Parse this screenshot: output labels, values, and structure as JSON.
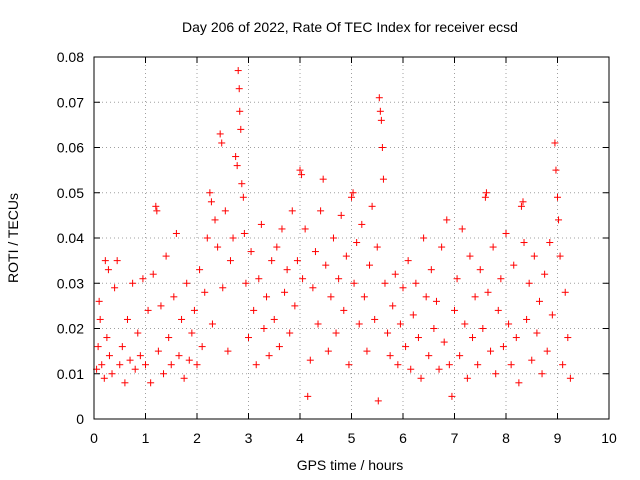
{
  "chart_data": {
    "type": "scatter",
    "title": "Day 206 of 2022, Rate Of TEC Index for receiver ecsd",
    "xlabel": "GPS time / hours",
    "ylabel": "ROTI / TECUs",
    "xlim": [
      0,
      10
    ],
    "ylim": [
      0,
      0.08
    ],
    "xticks": [
      "0",
      "1",
      "2",
      "3",
      "4",
      "5",
      "6",
      "7",
      "8",
      "9",
      "10"
    ],
    "yticks": [
      "0",
      "0.01",
      "0.02",
      "0.03",
      "0.04",
      "0.05",
      "0.06",
      "0.07",
      "0.08"
    ],
    "xtick_values": [
      0,
      1,
      2,
      3,
      4,
      5,
      6,
      7,
      8,
      9,
      10
    ],
    "ytick_values": [
      0,
      0.01,
      0.02,
      0.03,
      0.04,
      0.05,
      0.06,
      0.07,
      0.08
    ],
    "grid": true,
    "marker": "+",
    "color": "#ff0000",
    "series": [
      {
        "name": "ROTI",
        "points": [
          [
            0.05,
            0.011
          ],
          [
            0.08,
            0.016
          ],
          [
            0.1,
            0.026
          ],
          [
            0.12,
            0.022
          ],
          [
            0.15,
            0.012
          ],
          [
            0.2,
            0.009
          ],
          [
            0.22,
            0.035
          ],
          [
            0.25,
            0.018
          ],
          [
            0.28,
            0.033
          ],
          [
            0.3,
            0.014
          ],
          [
            0.35,
            0.01
          ],
          [
            0.4,
            0.029
          ],
          [
            0.45,
            0.035
          ],
          [
            0.5,
            0.012
          ],
          [
            0.55,
            0.016
          ],
          [
            0.6,
            0.008
          ],
          [
            0.65,
            0.022
          ],
          [
            0.7,
            0.013
          ],
          [
            0.75,
            0.03
          ],
          [
            0.8,
            0.011
          ],
          [
            0.85,
            0.019
          ],
          [
            0.9,
            0.014
          ],
          [
            0.95,
            0.031
          ],
          [
            1.0,
            0.012
          ],
          [
            1.05,
            0.024
          ],
          [
            1.1,
            0.008
          ],
          [
            1.15,
            0.032
          ],
          [
            1.2,
            0.047
          ],
          [
            1.22,
            0.046
          ],
          [
            1.25,
            0.015
          ],
          [
            1.3,
            0.025
          ],
          [
            1.35,
            0.01
          ],
          [
            1.4,
            0.036
          ],
          [
            1.45,
            0.018
          ],
          [
            1.5,
            0.012
          ],
          [
            1.55,
            0.027
          ],
          [
            1.6,
            0.041
          ],
          [
            1.65,
            0.014
          ],
          [
            1.7,
            0.022
          ],
          [
            1.75,
            0.009
          ],
          [
            1.8,
            0.03
          ],
          [
            1.85,
            0.013
          ],
          [
            1.9,
            0.019
          ],
          [
            1.95,
            0.024
          ],
          [
            2.0,
            0.012
          ],
          [
            2.05,
            0.033
          ],
          [
            2.1,
            0.016
          ],
          [
            2.15,
            0.028
          ],
          [
            2.2,
            0.04
          ],
          [
            2.25,
            0.05
          ],
          [
            2.28,
            0.048
          ],
          [
            2.3,
            0.021
          ],
          [
            2.35,
            0.044
          ],
          [
            2.4,
            0.038
          ],
          [
            2.45,
            0.063
          ],
          [
            2.48,
            0.061
          ],
          [
            2.5,
            0.029
          ],
          [
            2.55,
            0.046
          ],
          [
            2.6,
            0.015
          ],
          [
            2.65,
            0.035
          ],
          [
            2.7,
            0.04
          ],
          [
            2.75,
            0.058
          ],
          [
            2.78,
            0.056
          ],
          [
            2.8,
            0.077
          ],
          [
            2.82,
            0.073
          ],
          [
            2.83,
            0.068
          ],
          [
            2.85,
            0.064
          ],
          [
            2.87,
            0.052
          ],
          [
            2.9,
            0.049
          ],
          [
            2.92,
            0.041
          ],
          [
            2.95,
            0.03
          ],
          [
            3.0,
            0.018
          ],
          [
            3.05,
            0.037
          ],
          [
            3.1,
            0.024
          ],
          [
            3.15,
            0.012
          ],
          [
            3.2,
            0.031
          ],
          [
            3.25,
            0.043
          ],
          [
            3.3,
            0.02
          ],
          [
            3.35,
            0.027
          ],
          [
            3.4,
            0.014
          ],
          [
            3.45,
            0.035
          ],
          [
            3.5,
            0.022
          ],
          [
            3.55,
            0.038
          ],
          [
            3.6,
            0.016
          ],
          [
            3.65,
            0.042
          ],
          [
            3.7,
            0.028
          ],
          [
            3.75,
            0.033
          ],
          [
            3.8,
            0.019
          ],
          [
            3.85,
            0.046
          ],
          [
            3.9,
            0.025
          ],
          [
            3.95,
            0.035
          ],
          [
            4.0,
            0.055
          ],
          [
            4.03,
            0.054
          ],
          [
            4.05,
            0.031
          ],
          [
            4.1,
            0.042
          ],
          [
            4.15,
            0.005
          ],
          [
            4.2,
            0.013
          ],
          [
            4.25,
            0.029
          ],
          [
            4.3,
            0.037
          ],
          [
            4.35,
            0.021
          ],
          [
            4.4,
            0.046
          ],
          [
            4.45,
            0.053
          ],
          [
            4.5,
            0.034
          ],
          [
            4.55,
            0.015
          ],
          [
            4.6,
            0.027
          ],
          [
            4.65,
            0.04
          ],
          [
            4.7,
            0.019
          ],
          [
            4.75,
            0.031
          ],
          [
            4.8,
            0.045
          ],
          [
            4.85,
            0.024
          ],
          [
            4.9,
            0.036
          ],
          [
            4.95,
            0.012
          ],
          [
            5.0,
            0.049
          ],
          [
            5.03,
            0.05
          ],
          [
            5.05,
            0.03
          ],
          [
            5.1,
            0.039
          ],
          [
            5.15,
            0.021
          ],
          [
            5.2,
            0.043
          ],
          [
            5.25,
            0.027
          ],
          [
            5.3,
            0.015
          ],
          [
            5.35,
            0.034
          ],
          [
            5.4,
            0.047
          ],
          [
            5.45,
            0.022
          ],
          [
            5.5,
            0.038
          ],
          [
            5.52,
            0.004
          ],
          [
            5.54,
            0.071
          ],
          [
            5.56,
            0.068
          ],
          [
            5.58,
            0.066
          ],
          [
            5.6,
            0.06
          ],
          [
            5.62,
            0.053
          ],
          [
            5.65,
            0.03
          ],
          [
            5.7,
            0.019
          ],
          [
            5.75,
            0.014
          ],
          [
            5.8,
            0.025
          ],
          [
            5.85,
            0.032
          ],
          [
            5.9,
            0.012
          ],
          [
            5.95,
            0.021
          ],
          [
            6.0,
            0.029
          ],
          [
            6.05,
            0.016
          ],
          [
            6.1,
            0.035
          ],
          [
            6.15,
            0.011
          ],
          [
            6.2,
            0.023
          ],
          [
            6.25,
            0.03
          ],
          [
            6.3,
            0.018
          ],
          [
            6.35,
            0.009
          ],
          [
            6.4,
            0.04
          ],
          [
            6.45,
            0.027
          ],
          [
            6.5,
            0.014
          ],
          [
            6.55,
            0.033
          ],
          [
            6.6,
            0.02
          ],
          [
            6.65,
            0.026
          ],
          [
            6.7,
            0.011
          ],
          [
            6.75,
            0.038
          ],
          [
            6.8,
            0.017
          ],
          [
            6.85,
            0.044
          ],
          [
            6.9,
            0.012
          ],
          [
            6.95,
            0.005
          ],
          [
            7.0,
            0.024
          ],
          [
            7.05,
            0.031
          ],
          [
            7.1,
            0.014
          ],
          [
            7.15,
            0.042
          ],
          [
            7.2,
            0.021
          ],
          [
            7.25,
            0.009
          ],
          [
            7.3,
            0.036
          ],
          [
            7.35,
            0.018
          ],
          [
            7.4,
            0.027
          ],
          [
            7.45,
            0.012
          ],
          [
            7.5,
            0.033
          ],
          [
            7.55,
            0.02
          ],
          [
            7.6,
            0.049
          ],
          [
            7.62,
            0.05
          ],
          [
            7.65,
            0.028
          ],
          [
            7.7,
            0.015
          ],
          [
            7.75,
            0.038
          ],
          [
            7.8,
            0.01
          ],
          [
            7.85,
            0.024
          ],
          [
            7.9,
            0.031
          ],
          [
            7.95,
            0.016
          ],
          [
            8.0,
            0.041
          ],
          [
            8.05,
            0.021
          ],
          [
            8.1,
            0.012
          ],
          [
            8.15,
            0.034
          ],
          [
            8.2,
            0.018
          ],
          [
            8.25,
            0.008
          ],
          [
            8.3,
            0.047
          ],
          [
            8.33,
            0.048
          ],
          [
            8.35,
            0.039
          ],
          [
            8.4,
            0.022
          ],
          [
            8.45,
            0.03
          ],
          [
            8.5,
            0.013
          ],
          [
            8.55,
            0.036
          ],
          [
            8.6,
            0.019
          ],
          [
            8.65,
            0.026
          ],
          [
            8.7,
            0.01
          ],
          [
            8.75,
            0.032
          ],
          [
            8.8,
            0.015
          ],
          [
            8.85,
            0.039
          ],
          [
            8.9,
            0.023
          ],
          [
            8.95,
            0.061
          ],
          [
            8.97,
            0.055
          ],
          [
            9.0,
            0.049
          ],
          [
            9.02,
            0.044
          ],
          [
            9.05,
            0.036
          ],
          [
            9.1,
            0.012
          ],
          [
            9.15,
            0.028
          ],
          [
            9.2,
            0.018
          ],
          [
            9.25,
            0.009
          ]
        ]
      }
    ]
  }
}
